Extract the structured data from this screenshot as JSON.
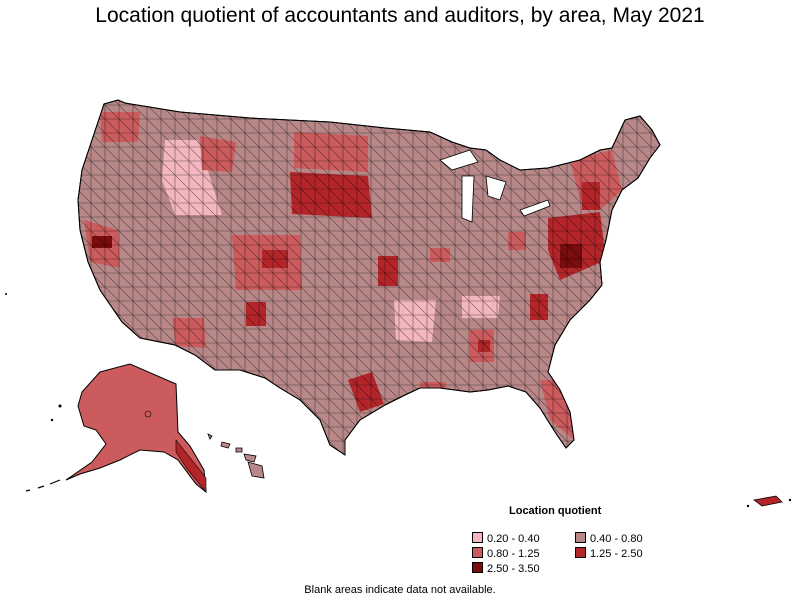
{
  "title": "Location quotient of accountants and auditors, by area, May 2021",
  "legend": {
    "title": "Location quotient",
    "items": [
      {
        "label": "0.20 - 0.40",
        "color": "#f4b7c0"
      },
      {
        "label": "0.40 - 0.80",
        "color": "#b88888"
      },
      {
        "label": "0.80 - 1.25",
        "color": "#cc5b5e"
      },
      {
        "label": "1.25 - 2.50",
        "color": "#b4252a"
      },
      {
        "label": "2.50 - 3.50",
        "color": "#7a0c0c"
      }
    ]
  },
  "footnote": "Blank areas indicate data not available."
}
